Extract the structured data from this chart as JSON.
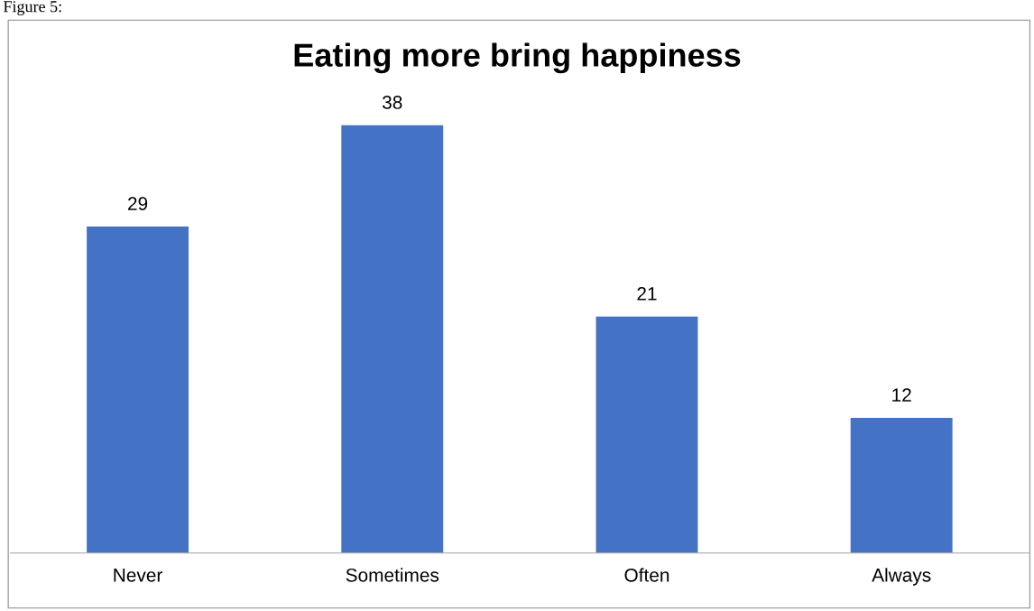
{
  "chart_data": {
    "type": "bar",
    "title": "Eating more bring happiness",
    "annotations": [
      "Figure 5:"
    ],
    "categories": [
      "Never",
      "Sometimes",
      "Often",
      "Always"
    ],
    "values": [
      29,
      38,
      21,
      12
    ],
    "color": "#4472c4",
    "data_labels": true,
    "grid": false,
    "legend": false
  }
}
